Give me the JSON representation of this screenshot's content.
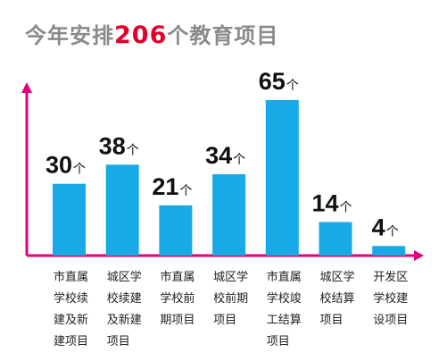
{
  "title": {
    "prefix": "今年安排",
    "highlight": "206",
    "suffix": "个教育项目"
  },
  "colors": {
    "bar": "#18a9e7",
    "axis": "#e0007a",
    "highlight": "#e0002b",
    "title": "#8a8a8a"
  },
  "chart_data": {
    "type": "bar",
    "unit": "个",
    "categories": [
      "市直属学校续建及新建项目",
      "城区学校续建及新建项目",
      "市直属学校前期项目",
      "城区学校前期项目",
      "市直属学校竣工结算项目",
      "城区学校结算项目",
      "开发区学校建设项目"
    ],
    "category_lines": [
      [
        "市直属",
        "学校续",
        "建及新",
        "建项目"
      ],
      [
        "城区学",
        "校续建",
        "及新建",
        "项目"
      ],
      [
        "市直属",
        "学校前",
        "期项目"
      ],
      [
        "城区学",
        "校前期",
        "项目"
      ],
      [
        "市直属",
        "学校竣",
        "工结算",
        "项目"
      ],
      [
        "城区学",
        "校结算",
        "项目"
      ],
      [
        "开发区",
        "学校建",
        "设项目"
      ]
    ],
    "values": [
      30,
      38,
      21,
      34,
      65,
      14,
      4
    ],
    "ylim": [
      0,
      70
    ],
    "grid": false,
    "legend": "none"
  }
}
